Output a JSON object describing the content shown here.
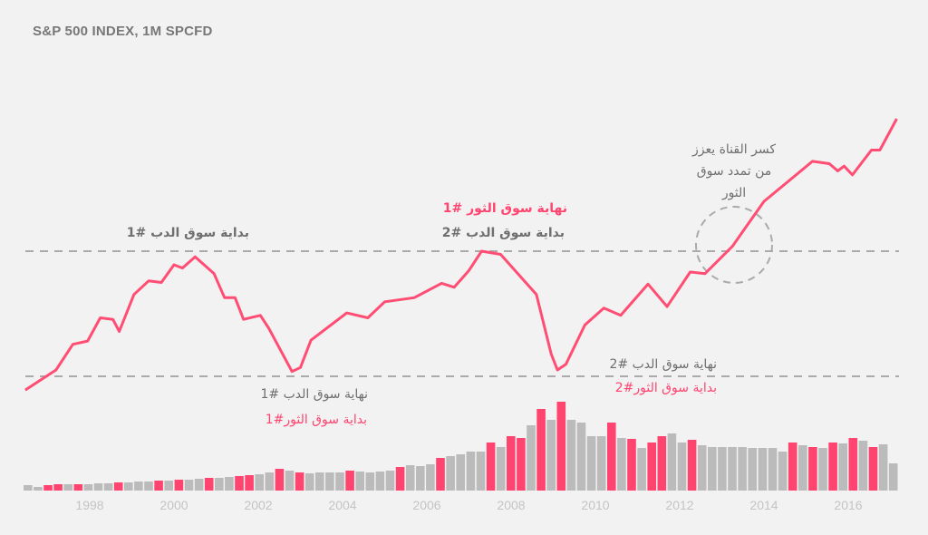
{
  "title": "S&P 500 INDEX, 1M SPCFD",
  "colors": {
    "line": "#ff4d73",
    "bar_highlight": "#ff4470",
    "bar": "#bbbbbb",
    "reference": "#aaaaaa",
    "annotation_gray": "#6f6f6f",
    "annotation_red": "#ff4470",
    "background": "#f2f2f2"
  },
  "annotations": {
    "bear1_start": "بداية سوق الدب #1",
    "bull1_end": "نهاية سوق الثور #1",
    "bear2_start": "بداية سوق الدب #2",
    "bear1_end": "نهاية سوق الدب #1",
    "bull1_start": "بداية سوق الثور#1",
    "bear2_end": "نهاية سوق الدب #2",
    "bull2_start": "بداية سوق الثور#2",
    "breakout": [
      "كسر القناة يعزز",
      "من تمدد سوق",
      "الثور"
    ]
  },
  "chart_data": {
    "type": "line",
    "title": "S&P 500 INDEX, 1M SPCFD",
    "xlabel": "",
    "ylabel": "",
    "x_ticks": [
      "1998",
      "2000",
      "2002",
      "2004",
      "2006",
      "2008",
      "2010",
      "2012",
      "2014",
      "2016"
    ],
    "xlim": [
      1996.4,
      2017.2
    ],
    "reference_levels": [
      1550,
      770
    ],
    "grid": false,
    "series": [
      {
        "x": [
          1996.47,
          1997.2,
          1997.6,
          1997.95,
          1998.25,
          1998.55,
          1998.7,
          1999.05,
          1999.4,
          1999.7,
          2000.0,
          2000.2,
          2000.5,
          2000.95,
          2001.2,
          2001.45,
          2001.65,
          2002.05,
          2002.25,
          2002.8,
          2003.0,
          2003.25,
          2004.1,
          2004.6,
          2005.0,
          2005.7,
          2006.35,
          2006.65,
          2007.0,
          2007.3,
          2007.75,
          2008.6,
          2008.95,
          2009.1,
          2009.3,
          2009.75,
          2010.2,
          2010.6,
          2011.25,
          2011.7,
          2012.25,
          2012.6,
          2013.25,
          2014.0,
          2015.15,
          2015.55,
          2015.75,
          2015.9,
          2016.1,
          2016.55,
          2016.75,
          2017.15
        ],
        "values": [
          685,
          810,
          970,
          990,
          1135,
          1125,
          1050,
          1280,
          1365,
          1355,
          1465,
          1445,
          1515,
          1410,
          1260,
          1260,
          1125,
          1150,
          1070,
          800,
          825,
          995,
          1165,
          1135,
          1235,
          1260,
          1350,
          1325,
          1430,
          1550,
          1530,
          1280,
          910,
          810,
          845,
          1090,
          1195,
          1150,
          1345,
          1205,
          1420,
          1410,
          1580,
          1860,
          2110,
          2095,
          2050,
          2080,
          2025,
          2180,
          2180,
          2375
        ]
      }
    ],
    "volume": {
      "type": "bar",
      "values": [
        6,
        4,
        6,
        7,
        7,
        7,
        7,
        8,
        8,
        9,
        9,
        10,
        10,
        11,
        11,
        12,
        12,
        13,
        14,
        14,
        15,
        16,
        17,
        18,
        20,
        24,
        22,
        20,
        19,
        20,
        20,
        20,
        22,
        21,
        20,
        21,
        22,
        26,
        28,
        27,
        29,
        36,
        38,
        40,
        43,
        43,
        53,
        48,
        60,
        58,
        72,
        90,
        78,
        98,
        78,
        75,
        60,
        60,
        75,
        58,
        57,
        47,
        53,
        60,
        63,
        53,
        56,
        50,
        48,
        48,
        48,
        48,
        47,
        47,
        47,
        43,
        53,
        50,
        48,
        47,
        53,
        52,
        58,
        55,
        48,
        51,
        30
      ],
      "highlighted": [
        2,
        3,
        5,
        9,
        13,
        15,
        18,
        21,
        22,
        25,
        27,
        32,
        37,
        41,
        46,
        48,
        49,
        51,
        53,
        58,
        60,
        62,
        63,
        66,
        76,
        78,
        80,
        82,
        84
      ]
    }
  }
}
